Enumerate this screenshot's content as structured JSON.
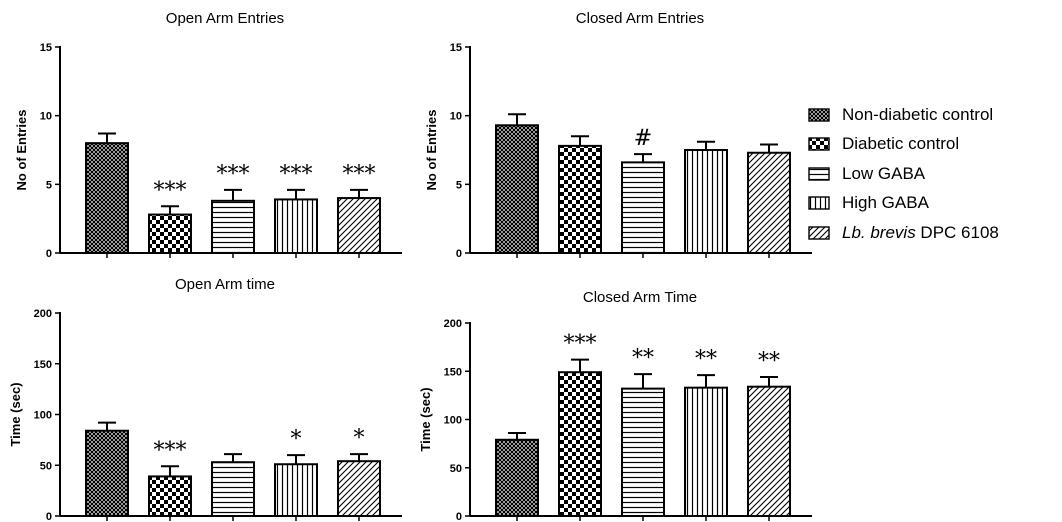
{
  "legend": [
    {
      "label": "Non-diabetic control",
      "pattern": "dense-crosshatch"
    },
    {
      "label": "Diabetic control",
      "pattern": "checkerboard"
    },
    {
      "label": "Low GABA",
      "pattern": "horizontal-lines"
    },
    {
      "label": "High GABA",
      "pattern": "vertical-lines"
    },
    {
      "label_italic": "Lb. brevis",
      "label_rest": " DPC 6108",
      "pattern": "diagonal-lines"
    }
  ],
  "chart_data": [
    {
      "type": "bar",
      "title": "Open Arm Entries",
      "ylabel": "No of Entries",
      "ylim": [
        0,
        15
      ],
      "yticks": [
        0,
        5,
        10,
        15
      ],
      "categories": [
        "Non-diabetic control",
        "Diabetic control",
        "Low GABA",
        "High GABA",
        "Lb. brevis DPC 6108"
      ],
      "values": [
        8.0,
        2.8,
        3.8,
        3.9,
        4.0
      ],
      "errors": [
        0.7,
        0.6,
        0.8,
        0.7,
        0.6
      ],
      "annotations": [
        "",
        "***",
        "***",
        "***",
        "***"
      ]
    },
    {
      "type": "bar",
      "title": "Closed Arm Entries",
      "ylabel": "No of Entries",
      "ylim": [
        0,
        15
      ],
      "yticks": [
        0,
        5,
        10,
        15
      ],
      "categories": [
        "Non-diabetic control",
        "Diabetic control",
        "Low GABA",
        "High GABA",
        "Lb. brevis DPC 6108"
      ],
      "values": [
        9.3,
        7.8,
        6.6,
        7.5,
        7.3
      ],
      "errors": [
        0.8,
        0.7,
        0.6,
        0.6,
        0.6
      ],
      "annotations": [
        "",
        "",
        "#",
        "",
        ""
      ]
    },
    {
      "type": "bar",
      "title": "Open Arm time",
      "ylabel": "Time (sec)",
      "ylim": [
        0,
        200
      ],
      "yticks": [
        0,
        50,
        100,
        150,
        200
      ],
      "categories": [
        "Non-diabetic control",
        "Diabetic control",
        "Low GABA",
        "High GABA",
        "Lb. brevis DPC 6108"
      ],
      "values": [
        84,
        39,
        53,
        51,
        54
      ],
      "errors": [
        8,
        10,
        8,
        9,
        7
      ],
      "annotations": [
        "",
        "***",
        "",
        "*",
        "*"
      ]
    },
    {
      "type": "bar",
      "title": "Closed Arm Time",
      "ylabel": "Time (sec)",
      "ylim": [
        0,
        200
      ],
      "yticks": [
        0,
        50,
        100,
        150,
        200
      ],
      "categories": [
        "Non-diabetic control",
        "Diabetic control",
        "Low GABA",
        "High GABA",
        "Lb. brevis DPC 6108"
      ],
      "values": [
        79,
        149,
        132,
        133,
        134
      ],
      "errors": [
        7,
        13,
        15,
        13,
        10
      ],
      "annotations": [
        "",
        "***",
        "**",
        "**",
        "**"
      ]
    }
  ]
}
